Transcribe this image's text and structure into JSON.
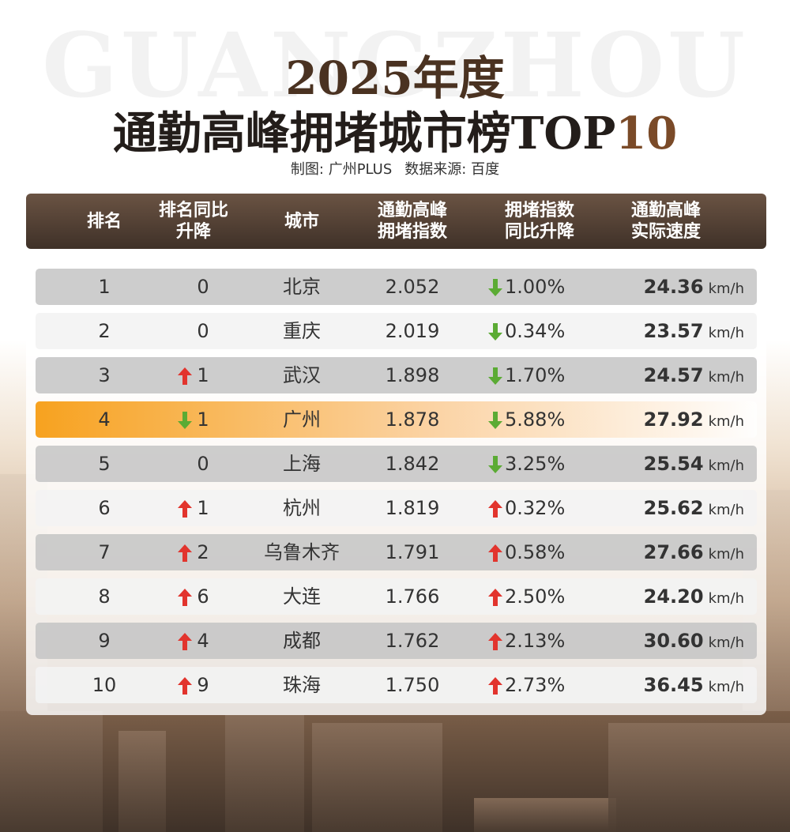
{
  "header": {
    "background_word": "GUANGZHOU",
    "title_line1": "2025年度",
    "title_main": "通勤高峰拥堵城市榜TOP",
    "title_accent": "10",
    "credit_maker": "制图: 广州PLUS",
    "credit_source": "数据来源: 百度"
  },
  "table": {
    "columns": [
      [
        "排名"
      ],
      [
        "排名同比",
        "升降"
      ],
      [
        "城市"
      ],
      [
        "通勤高峰",
        "拥堵指数"
      ],
      [
        "拥堵指数",
        "同比升降"
      ],
      [
        "通勤高峰",
        "实际速度"
      ]
    ],
    "speed_unit": "km/h",
    "highlight_row": 3,
    "rows": [
      {
        "rank": "1",
        "change_dir": null,
        "change": "0",
        "city": "北京",
        "index": "2.052",
        "yoy_dir": "down",
        "yoy": "1.00%",
        "speed": "24.36"
      },
      {
        "rank": "2",
        "change_dir": null,
        "change": "0",
        "city": "重庆",
        "index": "2.019",
        "yoy_dir": "down",
        "yoy": "0.34%",
        "speed": "23.57"
      },
      {
        "rank": "3",
        "change_dir": "up",
        "change": "1",
        "city": "武汉",
        "index": "1.898",
        "yoy_dir": "down",
        "yoy": "1.70%",
        "speed": "24.57"
      },
      {
        "rank": "4",
        "change_dir": "down",
        "change": "1",
        "city": "广州",
        "index": "1.878",
        "yoy_dir": "down",
        "yoy": "5.88%",
        "speed": "27.92"
      },
      {
        "rank": "5",
        "change_dir": null,
        "change": "0",
        "city": "上海",
        "index": "1.842",
        "yoy_dir": "down",
        "yoy": "3.25%",
        "speed": "25.54"
      },
      {
        "rank": "6",
        "change_dir": "up",
        "change": "1",
        "city": "杭州",
        "index": "1.819",
        "yoy_dir": "up",
        "yoy": "0.32%",
        "speed": "25.62"
      },
      {
        "rank": "7",
        "change_dir": "up",
        "change": "2",
        "city": "乌鲁木齐",
        "index": "1.791",
        "yoy_dir": "up",
        "yoy": "0.58%",
        "speed": "27.66"
      },
      {
        "rank": "8",
        "change_dir": "up",
        "change": "6",
        "city": "大连",
        "index": "1.766",
        "yoy_dir": "up",
        "yoy": "2.50%",
        "speed": "24.20"
      },
      {
        "rank": "9",
        "change_dir": "up",
        "change": "4",
        "city": "成都",
        "index": "1.762",
        "yoy_dir": "up",
        "yoy": "2.13%",
        "speed": "30.60"
      },
      {
        "rank": "10",
        "change_dir": "up",
        "change": "9",
        "city": "珠海",
        "index": "1.750",
        "yoy_dir": "up",
        "yoy": "2.73%",
        "speed": "36.45"
      }
    ]
  }
}
